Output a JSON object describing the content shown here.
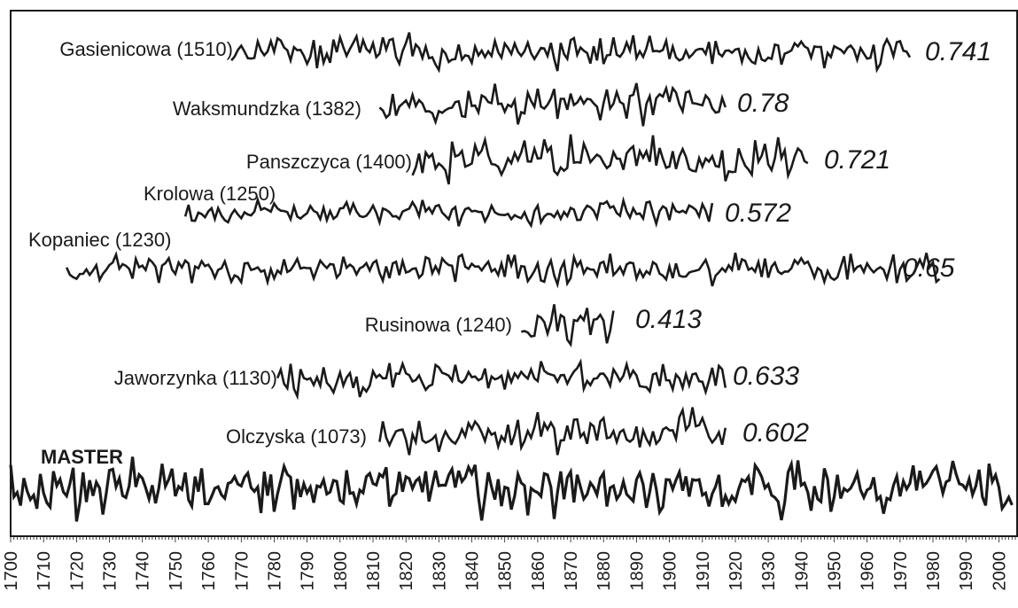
{
  "chart_data": {
    "type": "line",
    "title": "",
    "xlabel": "",
    "ylabel": "",
    "xlim": [
      1700,
      2005
    ],
    "x_ticks": [
      "1700",
      "1710",
      "1720",
      "1730",
      "1740",
      "1750",
      "1760",
      "1770",
      "1780",
      "1790",
      "1800",
      "1810",
      "1820",
      "1830",
      "1840",
      "1850",
      "1860",
      "1870",
      "1880",
      "1890",
      "1900",
      "1910",
      "1920",
      "1930",
      "1940",
      "1950",
      "1960",
      "1970",
      "1980",
      "1990",
      "2000"
    ],
    "grid": false,
    "legend": "none",
    "master_label": "MASTER",
    "series": [
      {
        "label": "Gasienicowa (1510)",
        "correlation": "0.741",
        "start": 1767,
        "end": 1973
      },
      {
        "label": "Waksmundzka (1382)",
        "correlation": "0.78",
        "start": 1812,
        "end": 1917
      },
      {
        "label": "Panszczyca (1400)",
        "correlation": "0.721",
        "start": 1822,
        "end": 1942
      },
      {
        "label": "Krolowa (1250)",
        "correlation": "0.572",
        "start": 1753,
        "end": 1913
      },
      {
        "label": "Kopaniec (1230)",
        "correlation": "0.65",
        "start": 1717,
        "end": 1982
      },
      {
        "label": "Rusinowa (1240)",
        "correlation": "0.413",
        "start": 1855,
        "end": 1883
      },
      {
        "label": "Jaworzynka (1130)",
        "correlation": "0.633",
        "start": 1781,
        "end": 1917
      },
      {
        "label": "Olczyska (1073)",
        "correlation": "0.602",
        "start": 1812,
        "end": 1917
      },
      {
        "label": "",
        "correlation": "",
        "start": 1700,
        "end": 2004,
        "master": true
      }
    ]
  }
}
